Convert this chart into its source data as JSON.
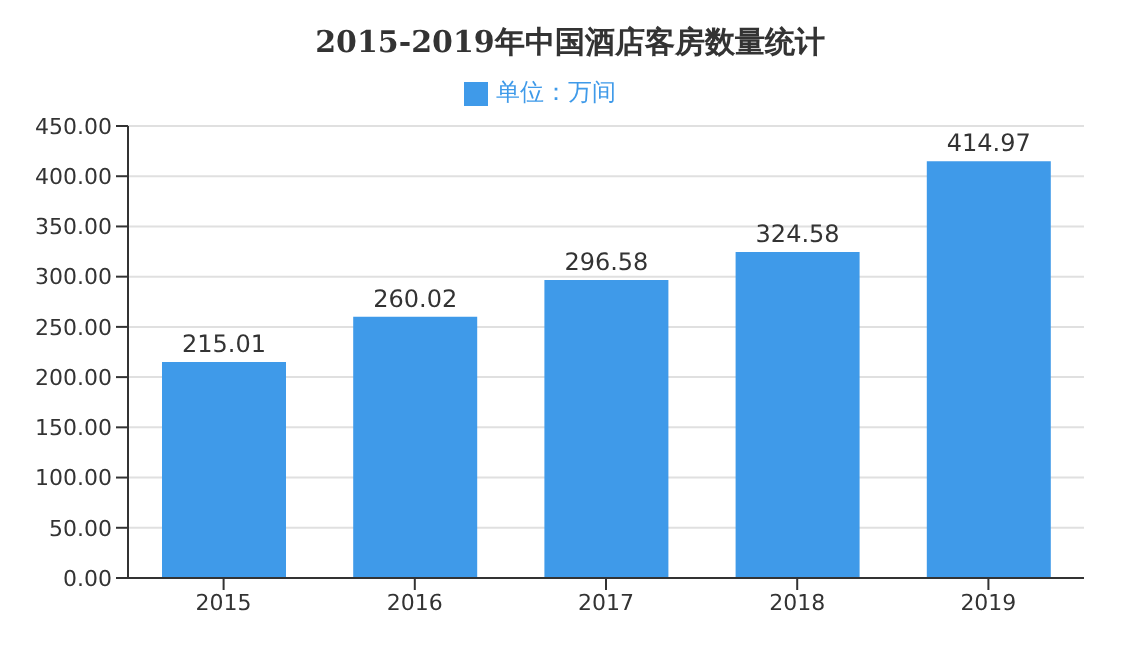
{
  "chart_data": {
    "type": "bar",
    "title": "2015-2019年中国酒店客房数量统计",
    "categories": [
      "2015",
      "2016",
      "2017",
      "2018",
      "2019"
    ],
    "series": [
      {
        "name": "单位：万间",
        "color": "#3f9ae9",
        "values": [
          215.01,
          260.02,
          296.58,
          324.58,
          414.97
        ]
      }
    ],
    "ylim": [
      0,
      450
    ],
    "yticks": [
      {
        "value": 0,
        "label": "0.00"
      },
      {
        "value": 50,
        "label": "50.00"
      },
      {
        "value": 100,
        "label": "100.00"
      },
      {
        "value": 150,
        "label": "150.00"
      },
      {
        "value": 200,
        "label": "200.00"
      },
      {
        "value": 250,
        "label": "250.00"
      },
      {
        "value": 300,
        "label": "300.00"
      },
      {
        "value": 350,
        "label": "350.00"
      },
      {
        "value": 400,
        "label": "400.00"
      },
      {
        "value": 450,
        "label": "450.00"
      }
    ],
    "grid": "y",
    "legend": "top",
    "data_labels": true
  }
}
